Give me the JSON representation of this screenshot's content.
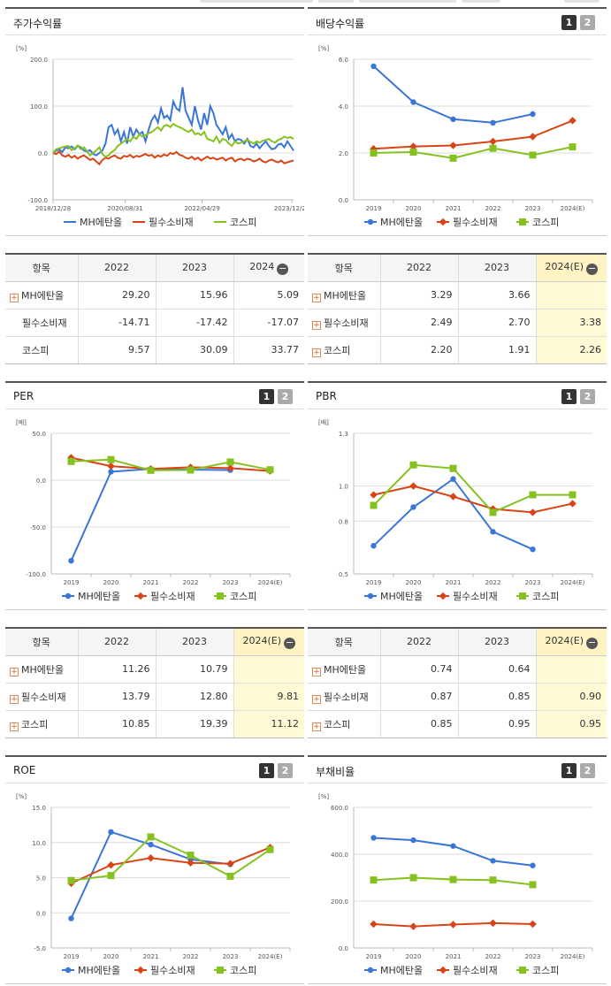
{
  "colors": {
    "mh": "#3a75d8",
    "staples": "#d94417",
    "kospi": "#86c21f"
  },
  "legend": [
    "MH에탄올",
    "필수소비재",
    "코스피"
  ],
  "tables": [
    {
      "head": [
        "항목",
        "2022",
        "2023",
        "2024"
      ],
      "minus": true,
      "rows": [
        {
          "plus": true,
          "name": "MH에탄올",
          "v": [
            "29.20",
            "15.96",
            "5.09"
          ]
        },
        {
          "plus": false,
          "name": "필수소비재",
          "v": [
            "-14.71",
            "-17.42",
            "-17.07"
          ]
        },
        {
          "plus": false,
          "name": "코스피",
          "v": [
            "9.57",
            "30.09",
            "33.77"
          ]
        }
      ],
      "hl": false
    },
    {
      "head": [
        "항목",
        "2022",
        "2023",
        "2024(E)"
      ],
      "minus": true,
      "rows": [
        {
          "plus": true,
          "name": "MH에탄올",
          "v": [
            "3.29",
            "3.66",
            ""
          ]
        },
        {
          "plus": true,
          "name": "필수소비재",
          "v": [
            "2.49",
            "2.70",
            "3.38"
          ]
        },
        {
          "plus": true,
          "name": "코스피",
          "v": [
            "2.20",
            "1.91",
            "2.26"
          ]
        }
      ],
      "hl": true
    },
    {
      "head": [
        "항목",
        "2022",
        "2023",
        "2024(E)"
      ],
      "minus": true,
      "rows": [
        {
          "plus": true,
          "name": "MH에탄올",
          "v": [
            "11.26",
            "10.79",
            ""
          ]
        },
        {
          "plus": true,
          "name": "필수소비재",
          "v": [
            "13.79",
            "12.80",
            "9.81"
          ]
        },
        {
          "plus": true,
          "name": "코스피",
          "v": [
            "10.85",
            "19.39",
            "11.12"
          ]
        }
      ],
      "hl": true
    },
    {
      "head": [
        "항목",
        "2022",
        "2023",
        "2024(E)"
      ],
      "minus": true,
      "rows": [
        {
          "plus": true,
          "name": "MH에탄올",
          "v": [
            "0.74",
            "0.64",
            ""
          ]
        },
        {
          "plus": true,
          "name": "필수소비재",
          "v": [
            "0.87",
            "0.85",
            "0.90"
          ]
        },
        {
          "plus": true,
          "name": "코스피",
          "v": [
            "0.85",
            "0.95",
            "0.95"
          ]
        }
      ],
      "hl": true
    }
  ],
  "chart_data": [
    {
      "title": "주가수익률",
      "type": "line",
      "unit": "[%]",
      "ylim": [
        -100,
        200
      ],
      "yticks": [
        "200.0",
        "100.0",
        "0.0",
        "-100.0"
      ],
      "xticks": [
        "2018/12/28",
        "2020/08/31",
        "2022/04/29",
        "2023/12/28"
      ],
      "toggles": false,
      "series": [
        {
          "name": "MH에탄올",
          "values": [
            0,
            5,
            8,
            2,
            12,
            10,
            14,
            8,
            15,
            12,
            5,
            3,
            6,
            -2,
            -5,
            0,
            5,
            20,
            55,
            60,
            40,
            50,
            25,
            45,
            20,
            55,
            35,
            50,
            40,
            45,
            25,
            50,
            70,
            80,
            65,
            95,
            75,
            80,
            70,
            110,
            95,
            90,
            140,
            90,
            75,
            60,
            100,
            70,
            50,
            85,
            60,
            100,
            85,
            60,
            50,
            40,
            55,
            30,
            40,
            25,
            30,
            28,
            20,
            30,
            15,
            12,
            20,
            10,
            18,
            25,
            15,
            8,
            10,
            18,
            20,
            12,
            25,
            15,
            5
          ]
        },
        {
          "name": "필수소비재",
          "values": [
            0,
            -2,
            3,
            -5,
            -8,
            -4,
            -10,
            -6,
            -12,
            -8,
            -5,
            -10,
            -15,
            -12,
            -18,
            -24,
            -15,
            -10,
            -12,
            -8,
            -5,
            -10,
            -12,
            -6,
            -8,
            -4,
            -10,
            -6,
            -8,
            -5,
            -2,
            -6,
            -4,
            -10,
            -5,
            -8,
            -3,
            -6,
            0,
            -2,
            2,
            -4,
            -6,
            -10,
            -12,
            -8,
            -14,
            -10,
            -16,
            -12,
            -8,
            -12,
            -10,
            -14,
            -12,
            -10,
            -16,
            -12,
            -10,
            -18,
            -14,
            -12,
            -16,
            -12,
            -14,
            -18,
            -16,
            -12,
            -18,
            -20,
            -16,
            -14,
            -18,
            -20,
            -16,
            -22,
            -20,
            -18,
            -16
          ]
        },
        {
          "name": "코스피",
          "values": [
            0,
            8,
            10,
            12,
            14,
            15,
            6,
            10,
            16,
            8,
            12,
            4,
            -5,
            0,
            5,
            12,
            -2,
            -8,
            -5,
            2,
            6,
            15,
            20,
            25,
            30,
            25,
            35,
            30,
            40,
            35,
            38,
            42,
            45,
            50,
            55,
            48,
            58,
            60,
            55,
            62,
            58,
            55,
            52,
            48,
            45,
            50,
            40,
            42,
            38,
            45,
            30,
            28,
            25,
            35,
            22,
            30,
            28,
            20,
            15,
            25,
            20,
            22,
            25,
            28,
            24,
            20,
            25,
            22,
            26,
            28,
            30,
            25,
            22,
            28,
            30,
            35,
            32,
            34,
            30
          ]
        }
      ]
    },
    {
      "title": "배당수익률",
      "type": "line",
      "unit": "[%]",
      "ylim": [
        0,
        6
      ],
      "yticks": [
        "6.0",
        "4.0",
        "2.0",
        "0.0"
      ],
      "x": [
        "2019",
        "2020",
        "2021",
        "2022",
        "2023",
        "2024(E)"
      ],
      "toggles": true,
      "series": [
        {
          "name": "MH에탄올",
          "values": [
            5.7,
            4.17,
            3.44,
            3.29,
            3.66,
            null
          ]
        },
        {
          "name": "필수소비재",
          "values": [
            2.18,
            2.28,
            2.32,
            2.49,
            2.7,
            3.38
          ]
        },
        {
          "name": "코스피",
          "values": [
            2.0,
            2.04,
            1.78,
            2.2,
            1.91,
            2.26
          ]
        }
      ]
    },
    {
      "title": "PER",
      "type": "line",
      "unit": "[배]",
      "ylim": [
        -100,
        50
      ],
      "yticks": [
        "50.0",
        "0.0",
        "-50.0",
        "-100.0"
      ],
      "x": [
        "2019",
        "2020",
        "2021",
        "2022",
        "2023",
        "2024(E)"
      ],
      "toggles": true,
      "series": [
        {
          "name": "MH에탄올",
          "values": [
            -86,
            9,
            12,
            11.26,
            10.79,
            null
          ]
        },
        {
          "name": "필수소비재",
          "values": [
            24,
            15,
            12,
            13.79,
            12.8,
            9.81
          ]
        },
        {
          "name": "코스피",
          "values": [
            20,
            22,
            10.5,
            10.85,
            19.39,
            11.12
          ]
        }
      ]
    },
    {
      "title": "PBR",
      "type": "line",
      "unit": "[배]",
      "ylim": [
        0.5,
        1.3
      ],
      "yticks": [
        "1.3",
        "1.0",
        "0.8",
        "0.5"
      ],
      "x": [
        "2019",
        "2020",
        "2021",
        "2022",
        "2023",
        "2024(E)"
      ],
      "toggles": true,
      "series": [
        {
          "name": "MH에탄올",
          "values": [
            0.66,
            0.88,
            1.04,
            0.74,
            0.64,
            null
          ]
        },
        {
          "name": "필수소비재",
          "values": [
            0.95,
            1.0,
            0.94,
            0.87,
            0.85,
            0.9
          ]
        },
        {
          "name": "코스피",
          "values": [
            0.89,
            1.12,
            1.1,
            0.85,
            0.95,
            0.95
          ]
        }
      ]
    },
    {
      "title": "ROE",
      "type": "line",
      "unit": "[%]",
      "ylim": [
        -5,
        15
      ],
      "yticks": [
        "15.0",
        "10.0",
        "5.0",
        "0.0",
        "-5.0"
      ],
      "x": [
        "2019",
        "2020",
        "2021",
        "2022",
        "2023",
        "2024(E)"
      ],
      "toggles": true,
      "series": [
        {
          "name": "MH에탄올",
          "values": [
            -0.8,
            11.5,
            9.7,
            7.6,
            6.9,
            null
          ]
        },
        {
          "name": "필수소비재",
          "values": [
            4.2,
            6.8,
            7.8,
            7.1,
            7.0,
            9.3
          ]
        },
        {
          "name": "코스피",
          "values": [
            4.6,
            5.3,
            10.8,
            8.2,
            5.2,
            9.0
          ]
        }
      ]
    },
    {
      "title": "부채비율",
      "type": "line",
      "unit": "[%]",
      "ylim": [
        0,
        600
      ],
      "yticks": [
        "600.0",
        "400.0",
        "200.0",
        "0.0"
      ],
      "x": [
        "2019",
        "2020",
        "2021",
        "2022",
        "2023",
        "2024(E)"
      ],
      "toggles": true,
      "series": [
        {
          "name": "MH에탄올",
          "values": [
            470,
            460,
            435,
            372,
            352,
            null
          ]
        },
        {
          "name": "필수소비재",
          "values": [
            102,
            92,
            100,
            106,
            102,
            null
          ]
        },
        {
          "name": "코스피",
          "values": [
            290,
            300,
            292,
            290,
            270,
            null
          ]
        }
      ]
    }
  ]
}
